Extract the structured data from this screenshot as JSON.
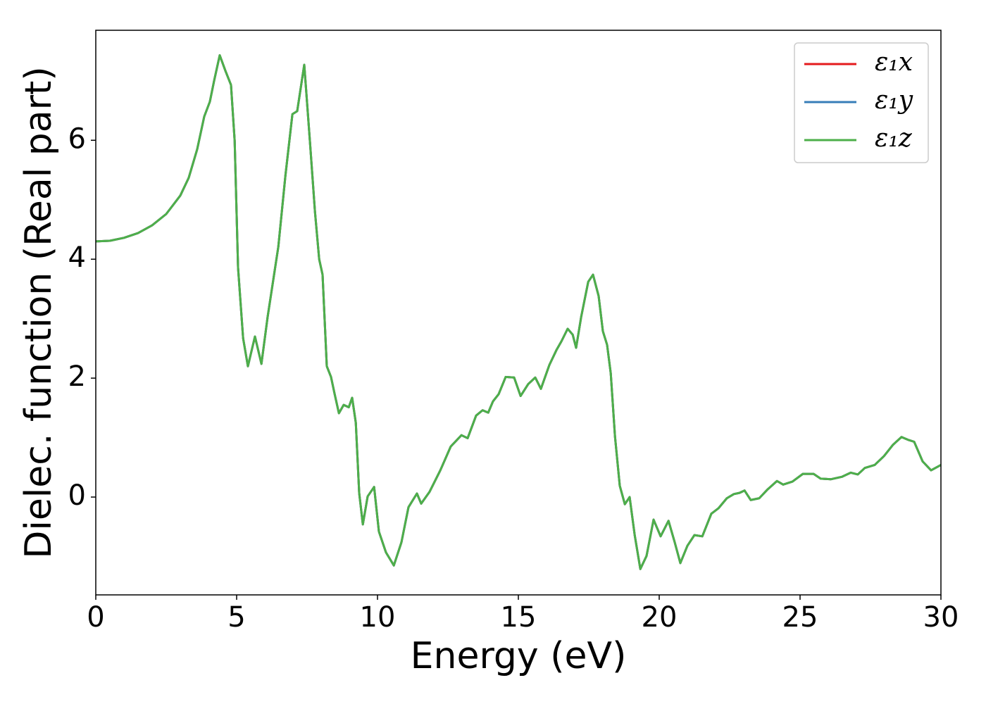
{
  "chart_data": {
    "type": "line",
    "x_label": "Energy (eV)",
    "y_label": "Dielec. function (Real part)",
    "x": [
      0,
      0.5,
      1,
      1.5,
      2,
      2.5,
      3,
      3.3,
      3.6,
      3.85,
      4.05,
      4.2,
      4.4,
      4.6,
      4.8,
      4.93,
      5.05,
      5.23,
      5.4,
      5.65,
      5.88,
      6.1,
      6.48,
      6.73,
      6.98,
      7.15,
      7.4,
      7.6,
      7.78,
      7.93,
      8.05,
      8.2,
      8.35,
      8.48,
      8.63,
      8.8,
      8.98,
      9.1,
      9.23,
      9.35,
      9.48,
      9.65,
      9.88,
      10.05,
      10.3,
      10.58,
      10.85,
      11.1,
      11.4,
      11.55,
      11.85,
      12.23,
      12.6,
      12.98,
      13.2,
      13.5,
      13.73,
      13.93,
      14.1,
      14.3,
      14.55,
      14.85,
      15.08,
      15.35,
      15.6,
      15.8,
      16.1,
      16.35,
      16.53,
      16.75,
      16.93,
      17.05,
      17.23,
      17.48,
      17.65,
      17.85,
      18.0,
      18.15,
      18.28,
      18.43,
      18.6,
      18.78,
      18.95,
      19.13,
      19.33,
      19.55,
      19.8,
      20.05,
      20.33,
      20.55,
      20.75,
      21.0,
      21.25,
      21.53,
      21.85,
      22.1,
      22.4,
      22.65,
      22.85,
      23.03,
      23.25,
      23.55,
      23.85,
      24.18,
      24.4,
      24.73,
      25.1,
      25.48,
      25.73,
      26.1,
      26.48,
      26.8,
      27.05,
      27.3,
      27.65,
      27.98,
      28.3,
      28.6,
      28.85,
      29.05,
      29.35,
      29.65,
      30.0
    ],
    "series": [
      {
        "name": "ε₁x",
        "color": "#e41a1c",
        "values": [
          4.3,
          4.31,
          4.36,
          4.44,
          4.57,
          4.76,
          5.07,
          5.37,
          5.85,
          6.4,
          6.65,
          7.0,
          7.43,
          7.17,
          6.93,
          5.99,
          3.86,
          2.67,
          2.2,
          2.7,
          2.24,
          3.03,
          4.21,
          5.4,
          6.44,
          6.49,
          7.27,
          5.99,
          4.8,
          4.0,
          3.74,
          2.2,
          2.02,
          1.73,
          1.41,
          1.55,
          1.51,
          1.67,
          1.25,
          0.07,
          -0.46,
          0.01,
          0.17,
          -0.58,
          -0.93,
          -1.15,
          -0.76,
          -0.17,
          0.06,
          -0.11,
          0.09,
          0.45,
          0.85,
          1.04,
          0.99,
          1.37,
          1.46,
          1.42,
          1.61,
          1.73,
          2.02,
          2.01,
          1.7,
          1.9,
          2.01,
          1.82,
          2.22,
          2.47,
          2.62,
          2.83,
          2.73,
          2.51,
          3.03,
          3.62,
          3.74,
          3.38,
          2.79,
          2.56,
          2.08,
          1.02,
          0.19,
          -0.12,
          0.0,
          -0.64,
          -1.21,
          -0.99,
          -0.38,
          -0.66,
          -0.4,
          -0.76,
          -1.11,
          -0.82,
          -0.64,
          -0.66,
          -0.28,
          -0.19,
          -0.02,
          0.05,
          0.07,
          0.11,
          -0.05,
          -0.02,
          0.13,
          0.27,
          0.21,
          0.26,
          0.39,
          0.39,
          0.31,
          0.3,
          0.34,
          0.41,
          0.38,
          0.49,
          0.54,
          0.69,
          0.88,
          1.01,
          0.96,
          0.93,
          0.6,
          0.45,
          0.54
        ]
      },
      {
        "name": "ε₁y",
        "color": "#377eb8",
        "values": [
          4.3,
          4.31,
          4.36,
          4.44,
          4.57,
          4.76,
          5.07,
          5.37,
          5.85,
          6.4,
          6.65,
          7.0,
          7.43,
          7.17,
          6.93,
          5.99,
          3.86,
          2.67,
          2.2,
          2.7,
          2.24,
          3.03,
          4.21,
          5.4,
          6.44,
          6.49,
          7.27,
          5.99,
          4.8,
          4.0,
          3.74,
          2.2,
          2.02,
          1.73,
          1.41,
          1.55,
          1.51,
          1.67,
          1.25,
          0.07,
          -0.46,
          0.01,
          0.17,
          -0.58,
          -0.93,
          -1.15,
          -0.76,
          -0.17,
          0.06,
          -0.11,
          0.09,
          0.45,
          0.85,
          1.04,
          0.99,
          1.37,
          1.46,
          1.42,
          1.61,
          1.73,
          2.02,
          2.01,
          1.7,
          1.9,
          2.01,
          1.82,
          2.22,
          2.47,
          2.62,
          2.83,
          2.73,
          2.51,
          3.03,
          3.62,
          3.74,
          3.38,
          2.79,
          2.56,
          2.08,
          1.02,
          0.19,
          -0.12,
          0.0,
          -0.64,
          -1.21,
          -0.99,
          -0.38,
          -0.66,
          -0.4,
          -0.76,
          -1.11,
          -0.82,
          -0.64,
          -0.66,
          -0.28,
          -0.19,
          -0.02,
          0.05,
          0.07,
          0.11,
          -0.05,
          -0.02,
          0.13,
          0.27,
          0.21,
          0.26,
          0.39,
          0.39,
          0.31,
          0.3,
          0.34,
          0.41,
          0.38,
          0.49,
          0.54,
          0.69,
          0.88,
          1.01,
          0.96,
          0.93,
          0.6,
          0.45,
          0.54
        ]
      },
      {
        "name": "ε₁z",
        "color": "#4daf4a",
        "values": [
          4.3,
          4.31,
          4.36,
          4.44,
          4.57,
          4.76,
          5.07,
          5.37,
          5.85,
          6.4,
          6.65,
          7.0,
          7.43,
          7.17,
          6.93,
          5.99,
          3.86,
          2.67,
          2.2,
          2.7,
          2.24,
          3.03,
          4.21,
          5.4,
          6.44,
          6.49,
          7.27,
          5.99,
          4.8,
          4.0,
          3.74,
          2.2,
          2.02,
          1.73,
          1.41,
          1.55,
          1.51,
          1.67,
          1.25,
          0.07,
          -0.46,
          0.01,
          0.17,
          -0.58,
          -0.93,
          -1.15,
          -0.76,
          -0.17,
          0.06,
          -0.11,
          0.09,
          0.45,
          0.85,
          1.04,
          0.99,
          1.37,
          1.46,
          1.42,
          1.61,
          1.73,
          2.02,
          2.01,
          1.7,
          1.9,
          2.01,
          1.82,
          2.22,
          2.47,
          2.62,
          2.83,
          2.73,
          2.51,
          3.03,
          3.62,
          3.74,
          3.38,
          2.79,
          2.56,
          2.08,
          1.02,
          0.19,
          -0.12,
          0.0,
          -0.64,
          -1.21,
          -0.99,
          -0.38,
          -0.66,
          -0.4,
          -0.76,
          -1.11,
          -0.82,
          -0.64,
          -0.66,
          -0.28,
          -0.19,
          -0.02,
          0.05,
          0.07,
          0.11,
          -0.05,
          -0.02,
          0.13,
          0.27,
          0.21,
          0.26,
          0.39,
          0.39,
          0.31,
          0.3,
          0.34,
          0.41,
          0.38,
          0.49,
          0.54,
          0.69,
          0.88,
          1.01,
          0.96,
          0.93,
          0.6,
          0.45,
          0.54
        ]
      }
    ],
    "xlim": [
      0,
      30
    ],
    "xticks": [
      0,
      5,
      10,
      15,
      20,
      25,
      30
    ],
    "ylim": [
      -1.645,
      7.85
    ],
    "yticks": [
      0,
      2,
      4,
      6
    ],
    "grid": false,
    "legend": "upper right"
  }
}
